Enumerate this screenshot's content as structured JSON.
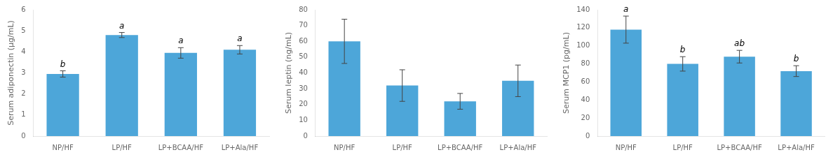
{
  "chart_data": [
    {
      "type": "bar",
      "ylabel": "Serum adiponectin (μg/mL)",
      "categories": [
        "NP/HF",
        "LP/HF",
        "LP+BCAA/HF",
        "LP+Ala/HF"
      ],
      "values": [
        2.95,
        4.8,
        3.95,
        4.1
      ],
      "errors": [
        0.15,
        0.12,
        0.25,
        0.2
      ],
      "annotations": [
        "b",
        "a",
        "a",
        "a"
      ],
      "color": "#4da6d9",
      "ylim": [
        0,
        6
      ],
      "yticks": [
        0,
        1,
        2,
        3,
        4,
        5,
        6
      ],
      "grid": false
    },
    {
      "type": "bar",
      "ylabel": "Serum leptin (ng/mL)",
      "categories": [
        "NP/HF",
        "LP/HF",
        "LP+BCAA/HF",
        "LP+Ala/HF"
      ],
      "values": [
        60,
        32,
        22,
        35
      ],
      "errors": [
        14,
        10,
        5,
        10
      ],
      "color": "#4da6d9",
      "ylim": [
        0,
        80
      ],
      "yticks": [
        0,
        10,
        20,
        30,
        40,
        50,
        60,
        70,
        80
      ],
      "grid": false
    },
    {
      "type": "bar",
      "ylabel": "Serum MCP1 (pg/mL)",
      "categories": [
        "NP/HF",
        "LP/HF",
        "LP+BCAA/HF",
        "LP+Ala/HF"
      ],
      "values": [
        118,
        80,
        88,
        72
      ],
      "errors": [
        15,
        8,
        7,
        6
      ],
      "annotations": [
        "a",
        "b",
        "ab",
        "b"
      ],
      "color": "#4da6d9",
      "ylim": [
        0,
        140
      ],
      "yticks": [
        0,
        20,
        40,
        60,
        80,
        100,
        120,
        140
      ],
      "grid": false
    }
  ]
}
